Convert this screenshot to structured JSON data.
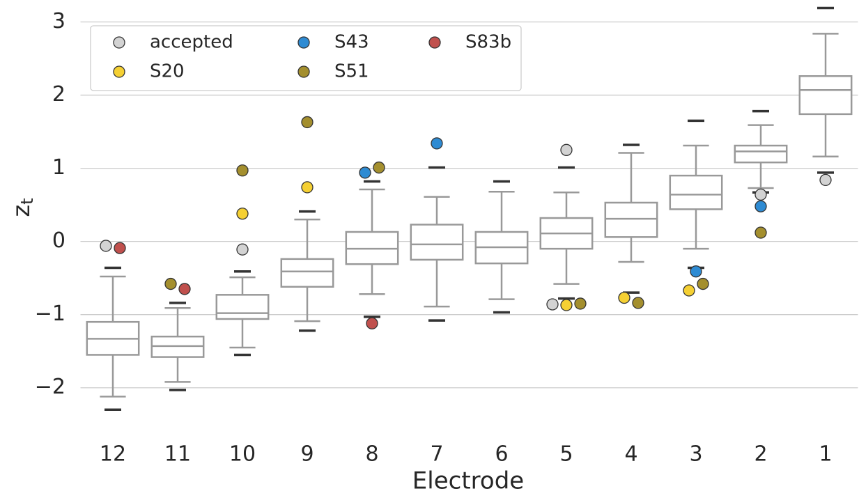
{
  "chart_data": {
    "type": "box",
    "xlabel": "Electrode",
    "ylabel": {
      "base": "z",
      "sub": "t"
    },
    "categories": [
      "12",
      "11",
      "10",
      "9",
      "8",
      "7",
      "6",
      "5",
      "4",
      "3",
      "2",
      "1"
    ],
    "whislo": [
      -2.12,
      -1.92,
      -1.45,
      -1.09,
      -0.72,
      -0.89,
      -0.79,
      -0.58,
      -0.28,
      -0.1,
      0.73,
      1.16
    ],
    "q1": [
      -1.55,
      -1.58,
      -1.06,
      -0.62,
      -0.31,
      -0.25,
      -0.3,
      -0.1,
      0.06,
      0.44,
      1.08,
      1.74
    ],
    "med": [
      -1.33,
      -1.43,
      -0.98,
      -0.41,
      -0.1,
      -0.04,
      -0.08,
      0.11,
      0.31,
      0.64,
      1.23,
      2.07
    ],
    "q3": [
      -1.1,
      -1.3,
      -0.73,
      -0.24,
      0.13,
      0.23,
      0.13,
      0.32,
      0.53,
      0.9,
      1.31,
      2.26
    ],
    "whishi": [
      -0.48,
      -0.91,
      -0.49,
      0.3,
      0.71,
      0.61,
      0.68,
      0.67,
      1.21,
      1.31,
      1.59,
      2.84
    ],
    "upper_marks": [
      -0.36,
      -0.84,
      -0.41,
      0.41,
      0.82,
      1.01,
      0.82,
      1.01,
      1.32,
      1.65,
      1.78,
      3.19
    ],
    "lower_marks": [
      -2.3,
      -2.03,
      -1.55,
      -1.22,
      -1.03,
      -1.08,
      -0.97,
      -0.78,
      -0.7,
      -0.36,
      0.67,
      0.94
    ],
    "box_color": "#999999",
    "mark_color": "#333333",
    "series": [
      {
        "name": "accepted",
        "color": "#d3d3d3",
        "x": [
          "12",
          "10",
          "5",
          "5",
          "2",
          "1"
        ],
        "values": [
          -0.06,
          -0.11,
          1.25,
          -0.86,
          0.64,
          0.84
        ]
      },
      {
        "name": "S20",
        "color": "#f5d033",
        "x": [
          "10",
          "9",
          "5",
          "4",
          "3"
        ],
        "values": [
          0.38,
          0.74,
          -0.87,
          -0.77,
          -0.67
        ]
      },
      {
        "name": "S43",
        "color": "#2e8bd3",
        "x": [
          "8",
          "7",
          "3",
          "2"
        ],
        "values": [
          0.94,
          1.34,
          -0.41,
          0.48
        ]
      },
      {
        "name": "S51",
        "color": "#a48f2e",
        "x": [
          "11",
          "10",
          "9",
          "8",
          "5",
          "4",
          "3",
          "2"
        ],
        "values": [
          -0.58,
          0.97,
          1.63,
          1.01,
          -0.85,
          -0.84,
          -0.58,
          0.12
        ]
      },
      {
        "name": "S83b",
        "color": "#c0504d",
        "x": [
          "12",
          "11",
          "8"
        ],
        "values": [
          -0.09,
          -0.65,
          -1.12
        ]
      }
    ],
    "ylim": [
      -2.65,
      3.3
    ],
    "yticks": [
      {
        "value": -2,
        "label": "−2"
      },
      {
        "value": -1,
        "label": "−1"
      },
      0,
      1,
      2,
      3
    ],
    "grid": true,
    "legend": "upper left"
  }
}
